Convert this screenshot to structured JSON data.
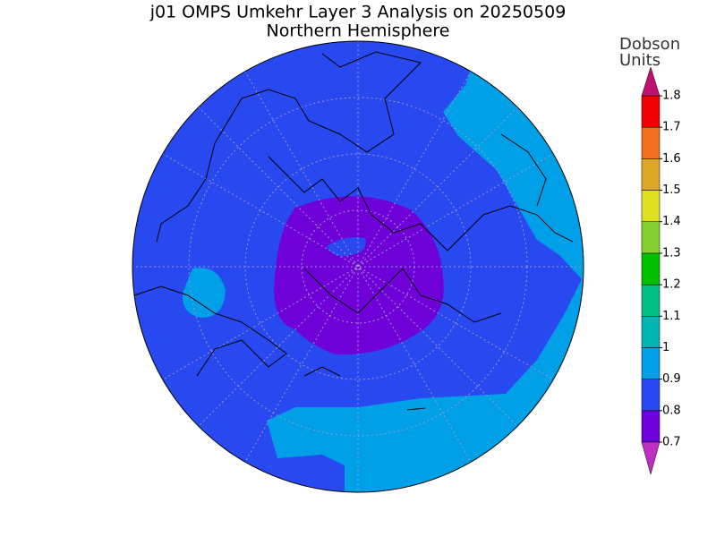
{
  "header": {
    "title": "j01 OMPS Umkehr Layer 3 Analysis on 20250509",
    "subtitle": "Northern Hemisphere"
  },
  "colorbar": {
    "label": [
      "Dobson",
      "Units"
    ],
    "ticks": [
      0.7,
      0.8,
      0.9,
      1,
      1.1,
      1.2,
      1.3,
      1.4,
      1.5,
      1.6,
      1.7,
      1.8
    ],
    "colors": [
      "#c030c0",
      "#7000d8",
      "#2848f0",
      "#00a0e8",
      "#00b4b4",
      "#00c088",
      "#00c000",
      "#88d030",
      "#e0e020",
      "#e0a828",
      "#f07020",
      "#f00000",
      "#c01070"
    ]
  }
}
